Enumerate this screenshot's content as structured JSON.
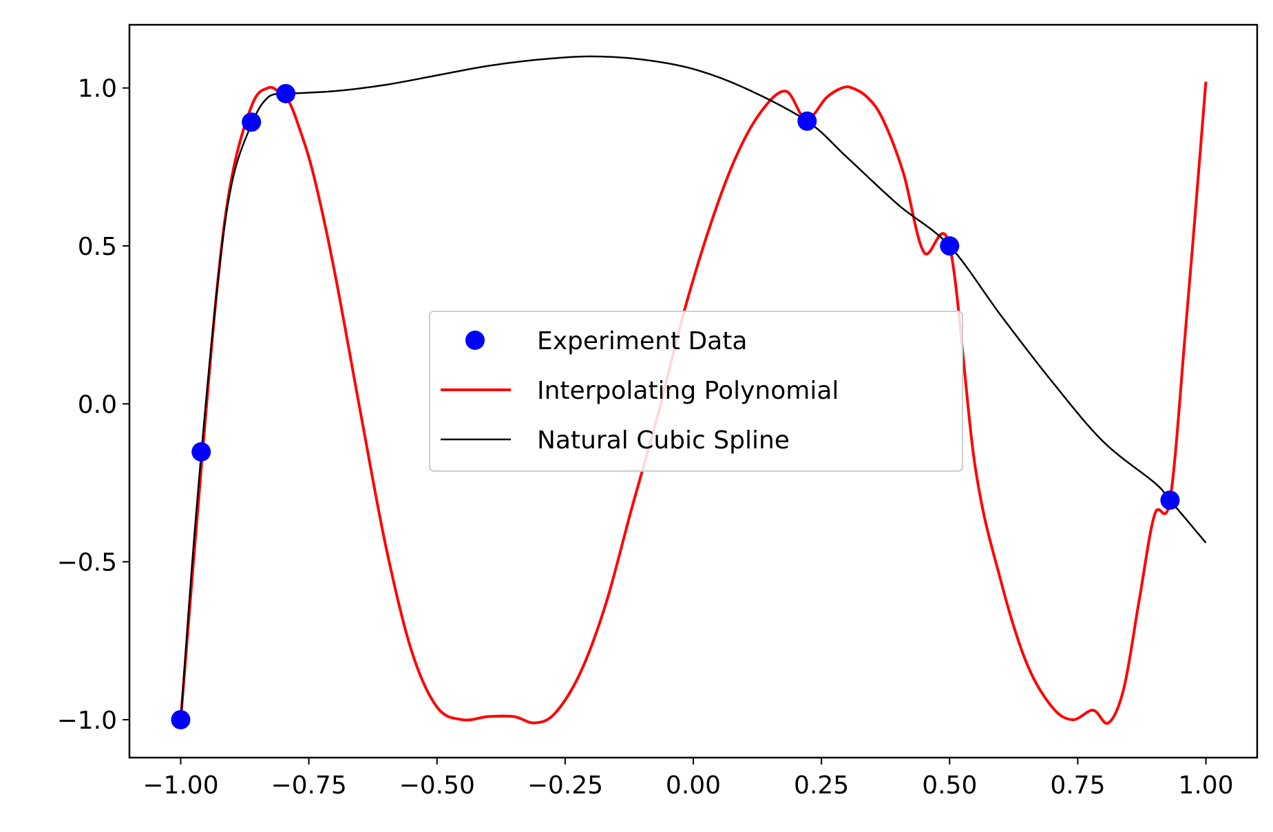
{
  "chart_data": {
    "type": "line",
    "title": "",
    "xlabel": "",
    "ylabel": "",
    "xlim": [
      -1.1,
      1.1
    ],
    "ylim": [
      -1.12,
      1.2
    ],
    "x_ticks": [
      -1.0,
      -0.75,
      -0.5,
      -0.25,
      0.0,
      0.25,
      0.5,
      0.75,
      1.0
    ],
    "x_tick_labels": [
      "−1.00",
      "−0.75",
      "−0.50",
      "−0.25",
      "0.00",
      "0.25",
      "0.50",
      "0.75",
      "1.00"
    ],
    "y_ticks": [
      -1.0,
      -0.5,
      0.0,
      0.5,
      1.0
    ],
    "y_tick_labels": [
      "−1.0",
      "−0.5",
      "0.0",
      "0.5",
      "1.0"
    ],
    "grid": false,
    "legend_position": "center-right",
    "series": [
      {
        "name": "Experiment Data",
        "kind": "scatter",
        "color": "#0000ff",
        "x": [
          -1.0,
          -0.96,
          -0.862,
          -0.795,
          0.222,
          0.5,
          0.93
        ],
        "y": [
          -1.0,
          -0.152,
          0.892,
          0.982,
          0.895,
          0.5,
          -0.305
        ]
      },
      {
        "name": "Interpolating Polynomial",
        "kind": "line",
        "color": "#ff0000",
        "x": [
          -1.0,
          -0.97,
          -0.93,
          -0.9,
          -0.86,
          -0.83,
          -0.81,
          -0.79,
          -0.77,
          -0.74,
          -0.7,
          -0.65,
          -0.6,
          -0.55,
          -0.5,
          -0.45,
          -0.4,
          -0.35,
          -0.31,
          -0.27,
          -0.22,
          -0.17,
          -0.12,
          -0.07,
          -0.02,
          0.03,
          0.08,
          0.13,
          0.18,
          0.22,
          0.26,
          0.29,
          0.31,
          0.34,
          0.37,
          0.41,
          0.45,
          0.5,
          0.55,
          0.6,
          0.65,
          0.7,
          0.74,
          0.78,
          0.81,
          0.84,
          0.87,
          0.9,
          0.93,
          0.96,
          0.98,
          1.0
        ],
        "y": [
          -1.0,
          -0.4,
          0.35,
          0.72,
          0.95,
          1.0,
          0.99,
          0.96,
          0.88,
          0.72,
          0.42,
          -0.02,
          -0.45,
          -0.78,
          -0.96,
          -1.0,
          -0.99,
          -0.99,
          -1.01,
          -0.98,
          -0.85,
          -0.63,
          -0.33,
          -0.04,
          0.28,
          0.55,
          0.77,
          0.92,
          0.99,
          0.9,
          0.97,
          1.0,
          1.0,
          0.97,
          0.9,
          0.73,
          0.48,
          0.5,
          -0.2,
          -0.56,
          -0.82,
          -0.96,
          -1.0,
          -0.97,
          -1.01,
          -0.9,
          -0.62,
          -0.35,
          -0.305,
          0.23,
          0.62,
          1.02
        ]
      },
      {
        "name": "Natural Cubic Spline",
        "kind": "line",
        "color": "#000000",
        "x": [
          -1.0,
          -0.97,
          -0.93,
          -0.9,
          -0.86,
          -0.83,
          -0.8,
          -0.795,
          -0.7,
          -0.6,
          -0.5,
          -0.4,
          -0.3,
          -0.2,
          -0.1,
          0.0,
          0.1,
          0.222,
          0.3,
          0.4,
          0.5,
          0.6,
          0.7,
          0.8,
          0.9,
          0.93,
          1.0
        ],
        "y": [
          -1.0,
          -0.35,
          0.35,
          0.7,
          0.892,
          0.97,
          0.982,
          0.982,
          0.99,
          1.01,
          1.04,
          1.07,
          1.09,
          1.1,
          1.09,
          1.06,
          1.0,
          0.895,
          0.78,
          0.63,
          0.5,
          0.28,
          0.07,
          -0.12,
          -0.25,
          -0.305,
          -0.44
        ]
      }
    ]
  }
}
